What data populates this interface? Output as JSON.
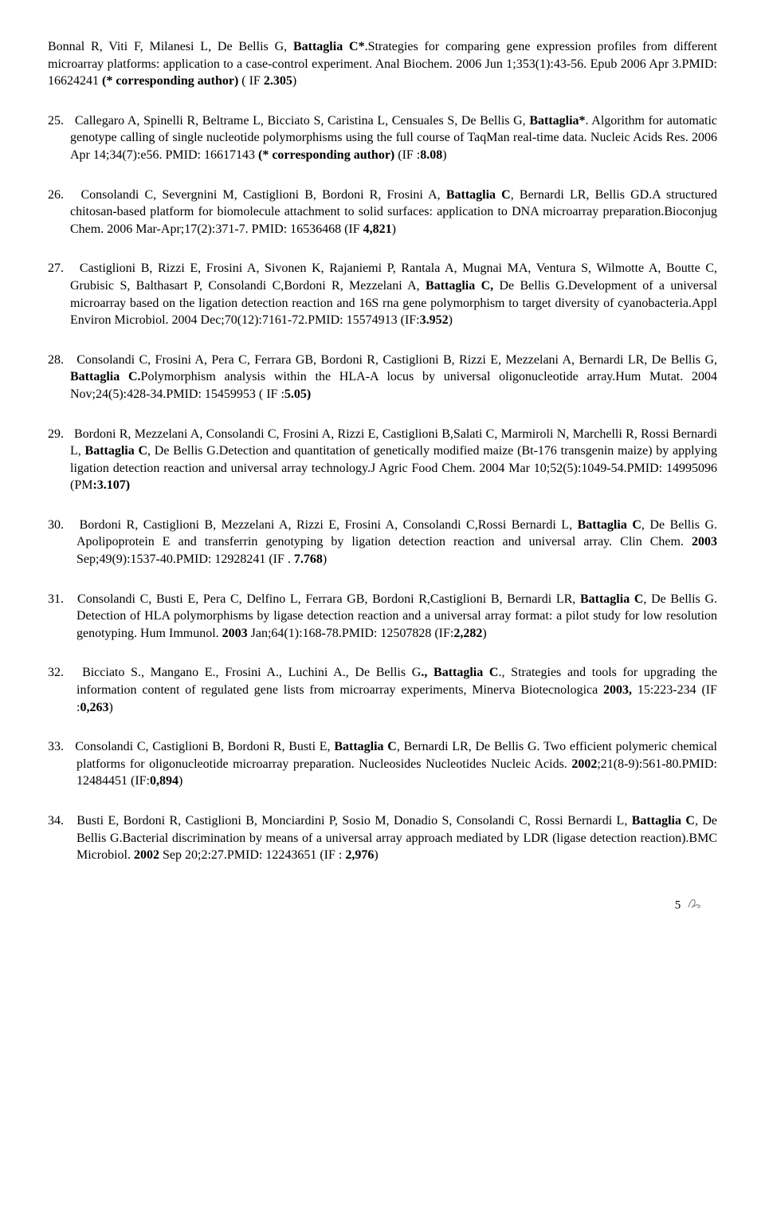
{
  "entries": [
    {
      "html": "Bonnal R, Viti F, Milanesi L, De Bellis G, <b>Battaglia C*</b>.Strategies for comparing gene expression profiles from different microarray platforms: application to a case-control experiment. Anal Biochem. 2006 Jun 1;353(1):43-56. Epub 2006 Apr 3.PMID: 16624241 <b>(* corresponding author)</b> ( IF <b>2.305</b>)",
      "num": "",
      "cls": "entry first"
    },
    {
      "html": "Callegaro A, Spinelli R, Beltrame L, Bicciato S, Caristina L, Censuales S, De Bellis G, <b>Battaglia*</b>. Algorithm for automatic genotype calling of single nucleotide polymorphisms using the full course of TaqMan real-time data. Nucleic Acids Res. 2006 Apr 14;34(7):e56. PMID: 16617143 <b>(* corresponding author)</b> (IF :<b>8.08</b>)",
      "num": "25.",
      "cls": "entry indent"
    },
    {
      "html": "Consolandi C, Severgnini M, Castiglioni B, Bordoni R, Frosini A, <b>Battaglia C</b>, Bernardi LR, Bellis GD.A structured chitosan-based platform for biomolecule attachment to solid surfaces: application to DNA microarray preparation.Bioconjug Chem. 2006 Mar-Apr;17(2):371-7. PMID: 16536468 (IF <b>4,821</b>)",
      "num": "26.",
      "cls": "entry indent"
    },
    {
      "html": "Castiglioni B, Rizzi E, Frosini A, Sivonen K, Rajaniemi P, Rantala A, Mugnai MA, Ventura S, Wilmotte A, Boutte C, Grubisic S, Balthasart P, Consolandi C,Bordoni R, Mezzelani A, <b>Battaglia C,</b> De Bellis G.Development of a universal microarray based on the ligation detection reaction and 16S rna gene polymorphism to target diversity of cyanobacteria.Appl Environ Microbiol. 2004 Dec;70(12):7161-72.PMID: 15574913 (IF:<b>3.952</b>)",
      "num": "27.",
      "cls": "entry indent"
    },
    {
      "html": "Consolandi C, Frosini A, Pera C, Ferrara GB, Bordoni R, Castiglioni B, Rizzi E, Mezzelani A, Bernardi LR, De Bellis G, <b>Battaglia C.</b>Polymorphism analysis within the HLA-A locus by universal oligonucleotide array.Hum Mutat. 2004 Nov;24(5):428-34.PMID: 15459953 ( IF :<b>5.05)</b>",
      "num": "28.",
      "cls": "entry indent"
    },
    {
      "html": "Bordoni R, Mezzelani A, Consolandi C, Frosini A, Rizzi E, Castiglioni B,Salati C, Marmiroli N, Marchelli R, Rossi Bernardi L, <b>Battaglia C</b>, De Bellis G.Detection and quantitation of genetically modified maize (Bt-176 transgenin maize) by applying ligation detection reaction and universal array technology.J Agric Food Chem. 2004 Mar 10;52(5):1049-54.PMID: 14995096 (PM<b>:3.107)</b>",
      "num": "29.",
      "cls": "entry indent"
    },
    {
      "html": "Bordoni R, Castiglioni B, Mezzelani A, Rizzi E, Frosini A, Consolandi C,Rossi Bernardi L, <b>Battaglia C</b>, De Bellis G. Apolipoprotein E and transferrin genotyping by ligation detection reaction and universal array. Clin Chem. <b>2003</b> Sep;49(9):1537-40.PMID: 12928241 (IF . <b>7.768</b>)",
      "num": "30.",
      "cls": "entry indent2"
    },
    {
      "html": "Consolandi C, Busti E, Pera C, Delfino L, Ferrara GB, Bordoni R,Castiglioni B, Bernardi LR, <b>Battaglia C</b>, De Bellis G. Detection of HLA polymorphisms by ligase detection reaction and a universal array format: a pilot study for low resolution genotyping. Hum Immunol. <b>2003</b> Jan;64(1):168-78.PMID: 12507828 (IF:<b>2,282</b>)",
      "num": "31.",
      "cls": "entry indent2"
    },
    {
      "html": "Bicciato S., Mangano E., Frosini A., Luchini A., De Bellis G<b>., Battaglia C</b>., Strategies and tools for upgrading the information content of regulated gene lists from microarray experiments, Minerva Biotecnologica <b>2003,</b> 15:223-234 (IF :<b>0,263</b>)",
      "num": "32.",
      "cls": "entry indent2"
    },
    {
      "html": "Consolandi C, Castiglioni B, Bordoni R, Busti E, <b>Battaglia C</b>, Bernardi LR, De Bellis G. Two efficient polymeric chemical platforms for oligonucleotide microarray preparation. Nucleosides Nucleotides Nucleic Acids. <b>2002</b>;21(8-9):561-80.PMID: 12484451 (IF:<b>0,894</b>)",
      "num": "33.",
      "cls": "entry indent2"
    },
    {
      "html": "Busti E, Bordoni R, Castiglioni B, Monciardini P, Sosio M, Donadio S, Consolandi C, Rossi Bernardi L, <b>Battaglia C</b>, De Bellis G.Bacterial discrimination by means of a universal array approach mediated by LDR (ligase detection reaction).BMC Microbiol. <b>2002</b> Sep 20;2:27.PMID: 12243651 (IF : <b>2,976</b>)",
      "num": "34.",
      "cls": "entry indent2"
    }
  ],
  "pageNumber": "5"
}
